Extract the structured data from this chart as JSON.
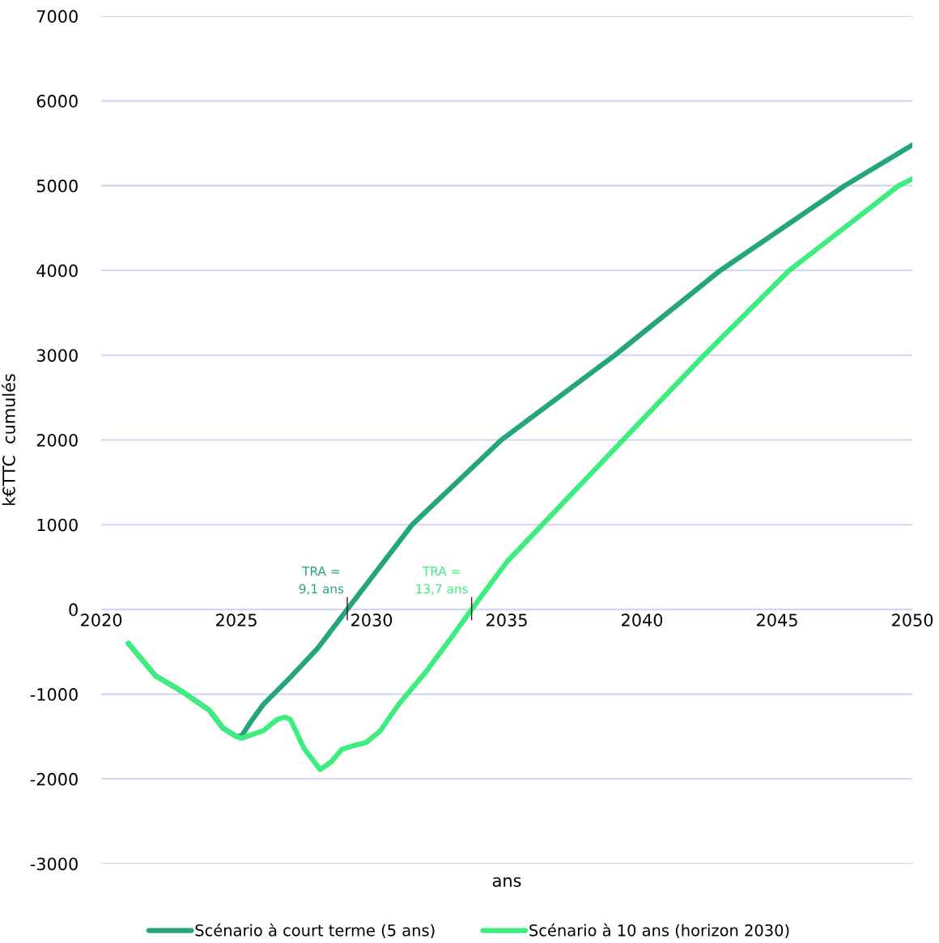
{
  "chart_data": {
    "type": "line",
    "xlabel": "ans",
    "ylabel": "k€TTC  cumulés",
    "xlim": [
      2020,
      2050
    ],
    "xticks": [
      2020,
      2025,
      2030,
      2035,
      2040,
      2045,
      2050
    ],
    "ylim": [
      -3000,
      7000
    ],
    "yticks": [
      -3000,
      -2000,
      -1000,
      0,
      1000,
      2000,
      3000,
      4000,
      5000,
      6000,
      7000
    ],
    "grid": "y",
    "legend": "bottom",
    "marker": "none",
    "line_style": "solid",
    "series": [
      {
        "name": "Scénario à court terme (5 ans)",
        "color": "#25a57b",
        "x": [
          2021,
          2022,
          2023,
          2024,
          2024.5,
          2025,
          2025.2,
          2025.5,
          2026,
          2027,
          2028,
          2029.1,
          2031.5,
          2034.8,
          2039,
          2042.9,
          2047.5,
          2050
        ],
        "values": [
          -400,
          -780,
          -970,
          -1190,
          -1400,
          -1500,
          -1490,
          -1340,
          -1120,
          -800,
          -460,
          0,
          1000,
          2000,
          3000,
          4000,
          5000,
          5480
        ]
      },
      {
        "name": "Scénario à 10 ans (horizon 2030)",
        "color": "#3ded7e",
        "x": [
          2021,
          2022,
          2023,
          2024,
          2024.5,
          2025,
          2025.2,
          2026,
          2026.5,
          2026.8,
          2027,
          2027.5,
          2028.1,
          2028.5,
          2028.9,
          2029.3,
          2029.8,
          2030.3,
          2031,
          2032,
          2033,
          2033.7,
          2035,
          2039.3,
          2042.3,
          2045.45,
          2049.5,
          2050
        ],
        "values": [
          -400,
          -780,
          -970,
          -1190,
          -1400,
          -1500,
          -1520,
          -1430,
          -1300,
          -1270,
          -1300,
          -1640,
          -1890,
          -1800,
          -1650,
          -1610,
          -1570,
          -1440,
          -1120,
          -740,
          -310,
          0,
          560,
          2000,
          3000,
          4000,
          5000,
          5080
        ]
      }
    ],
    "annotations": [
      {
        "text": "TRA =\n9,1 ans",
        "x": 2029.1,
        "y": 0
      },
      {
        "text": "TRA =\n13,7 ans",
        "x": 2033.7,
        "y": 0
      }
    ]
  }
}
